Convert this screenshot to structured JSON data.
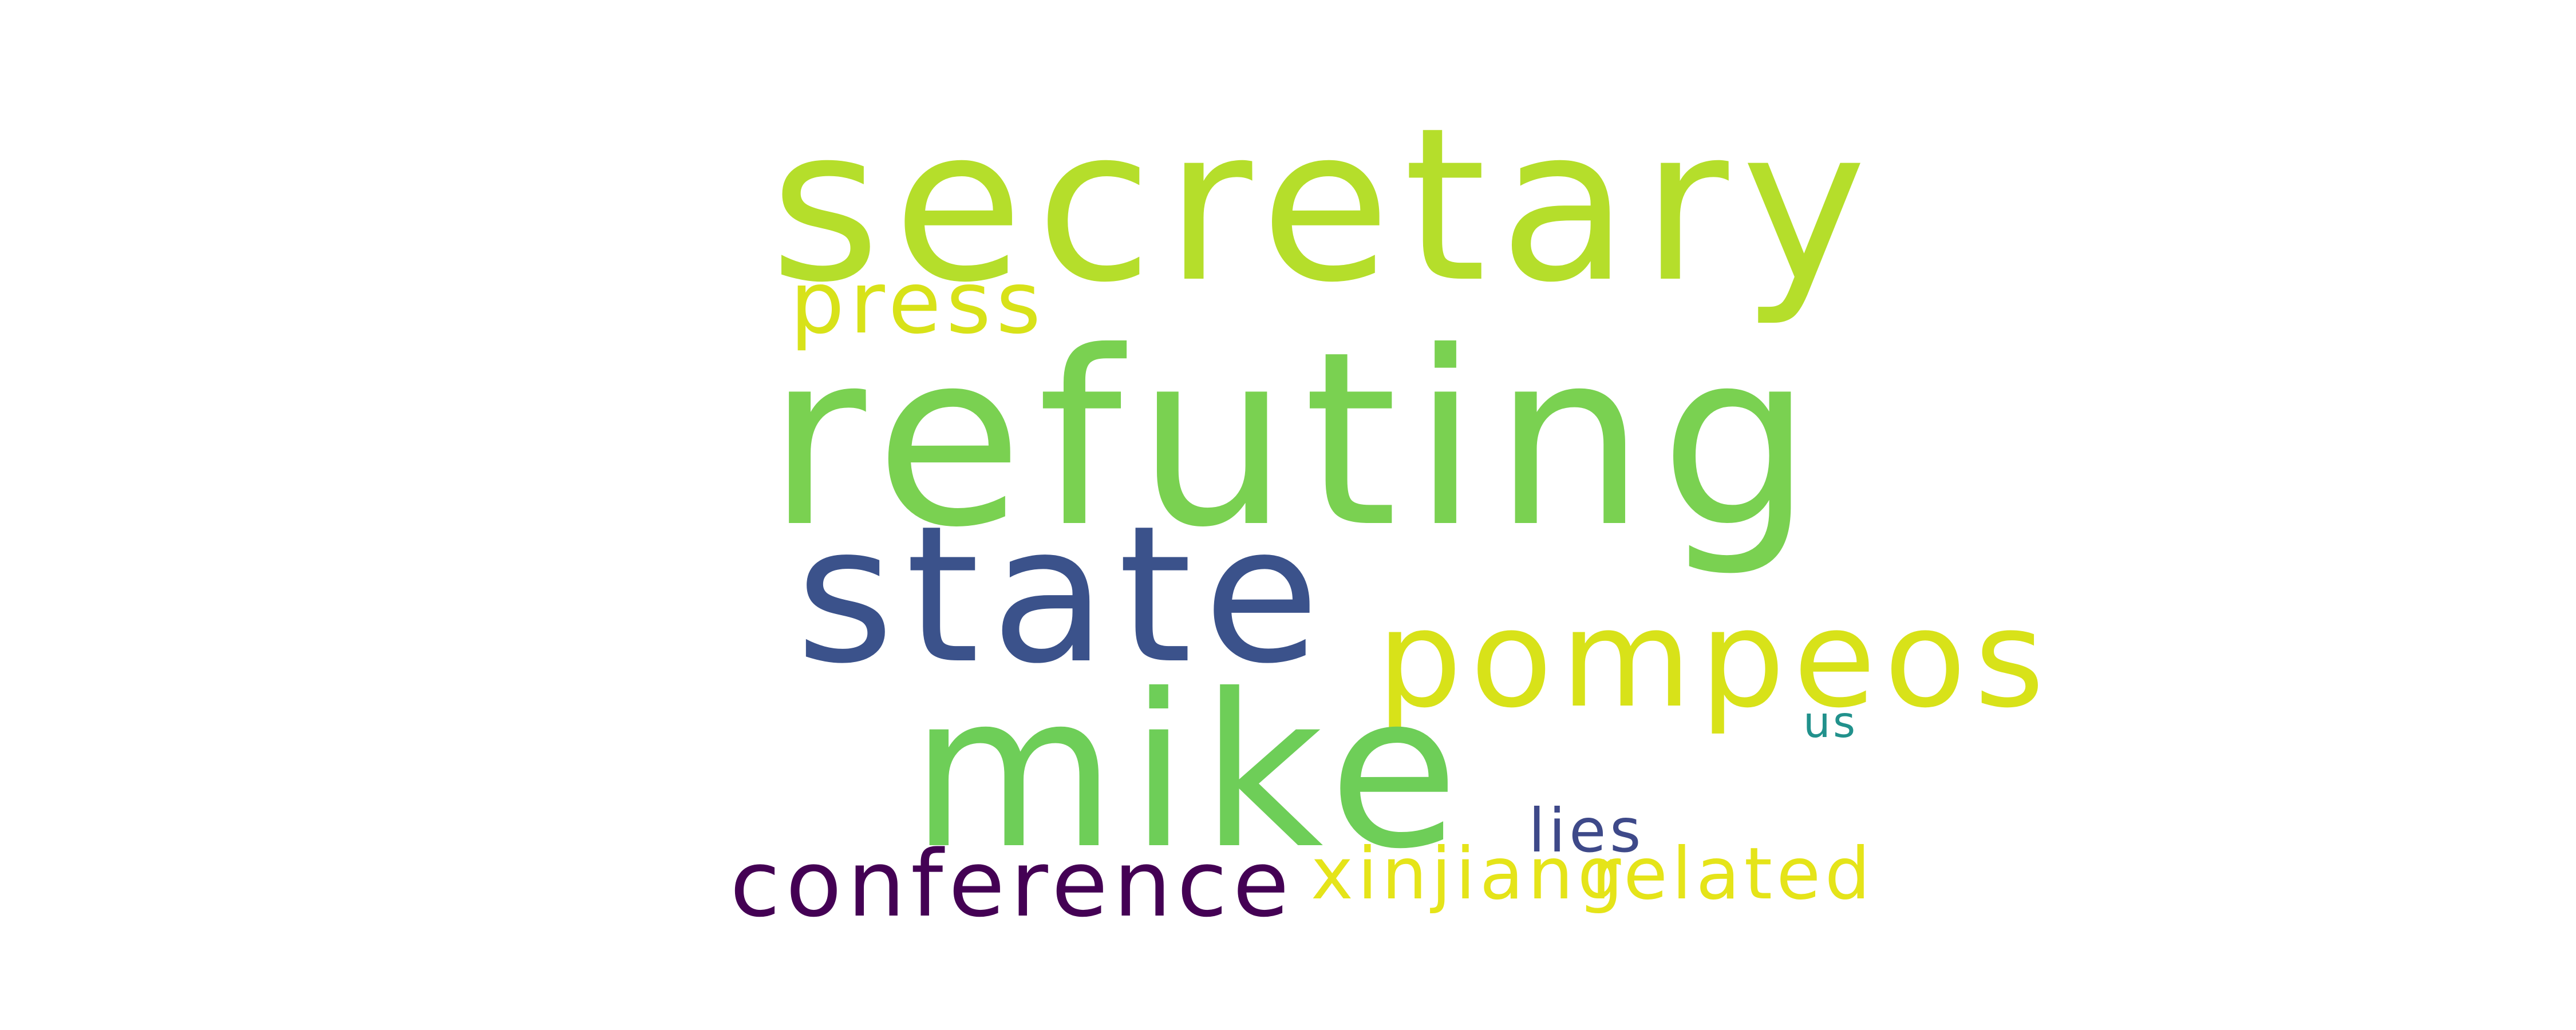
{
  "words": {
    "secretary": {
      "text": "secretary",
      "color": "#b5de2b"
    },
    "press": {
      "text": "press",
      "color": "#d8e219"
    },
    "refuting": {
      "text": "refuting",
      "color": "#7ad151"
    },
    "state": {
      "text": "state",
      "color": "#3b528b"
    },
    "pompeos": {
      "text": "pompeos",
      "color": "#d8e219"
    },
    "us": {
      "text": "us",
      "color": "#21918c"
    },
    "mike": {
      "text": "mike",
      "color": "#6ece58"
    },
    "lies": {
      "text": "lies",
      "color": "#3e4989"
    },
    "conference": {
      "text": "conference",
      "color": "#440154"
    },
    "xinjiang": {
      "text": "xinjiang",
      "color": "#e5e419"
    },
    "related": {
      "text": "related",
      "color": "#e5e419"
    }
  },
  "background": "#ffffff"
}
